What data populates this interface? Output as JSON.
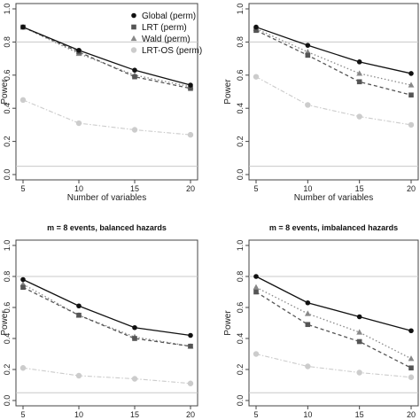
{
  "legend_entries": [
    {
      "label": "Global (perm)",
      "color": "#111111",
      "marker": "circle"
    },
    {
      "label": "LRT (perm)",
      "color": "#555555",
      "marker": "square"
    },
    {
      "label": "Wald (perm)",
      "color": "#888888",
      "marker": "triangle"
    },
    {
      "label": "LRT-OS (perm)",
      "color": "#cccccc",
      "marker": "diamond"
    }
  ],
  "chart_data": [
    {
      "type": "line",
      "title": "",
      "xlabel": "Number of variables",
      "ylabel": "Power",
      "x": [
        5,
        10,
        15,
        20
      ],
      "xlim": [
        5,
        20
      ],
      "ylim": [
        0,
        1
      ],
      "yticks": [
        "0.0",
        "0.2",
        "0.4",
        "0.6",
        "0.8",
        "1.0"
      ],
      "reference_lines": [
        0.05,
        0.8
      ],
      "legend": "top-right",
      "series": [
        {
          "name": "Global (perm)",
          "values": [
            0.89,
            0.75,
            0.63,
            0.54
          ]
        },
        {
          "name": "LRT (perm)",
          "values": [
            0.89,
            0.74,
            0.59,
            0.52
          ]
        },
        {
          "name": "Wald (perm)",
          "values": [
            0.89,
            0.73,
            0.6,
            0.53
          ]
        },
        {
          "name": "LRT-OS (perm)",
          "values": [
            0.45,
            0.31,
            0.27,
            0.24
          ]
        }
      ]
    },
    {
      "type": "line",
      "title": "",
      "xlabel": "Number of variables",
      "ylabel": "Power",
      "x": [
        5,
        10,
        15,
        20
      ],
      "xlim": [
        5,
        20
      ],
      "ylim": [
        0,
        1
      ],
      "yticks": [
        "0.0",
        "0.2",
        "0.4",
        "0.6",
        "0.8",
        "1.0"
      ],
      "reference_lines": [
        0.05,
        0.8
      ],
      "series": [
        {
          "name": "Global (perm)",
          "values": [
            0.89,
            0.78,
            0.68,
            0.61
          ]
        },
        {
          "name": "LRT (perm)",
          "values": [
            0.87,
            0.72,
            0.56,
            0.48
          ]
        },
        {
          "name": "Wald (perm)",
          "values": [
            0.88,
            0.74,
            0.61,
            0.54
          ]
        },
        {
          "name": "LRT-OS (perm)",
          "values": [
            0.59,
            0.42,
            0.35,
            0.3
          ]
        }
      ]
    },
    {
      "type": "line",
      "title": "m = 8 events, balanced hazards",
      "xlabel": "",
      "ylabel": "Power",
      "x": [
        5,
        10,
        15,
        20
      ],
      "xlim": [
        5,
        20
      ],
      "ylim": [
        0,
        1
      ],
      "yticks": [
        "0.0",
        "0.2",
        "0.4",
        "0.6",
        "0.8",
        "1.0"
      ],
      "reference_lines": [
        0.05,
        0.8
      ],
      "series": [
        {
          "name": "Global (perm)",
          "values": [
            0.78,
            0.61,
            0.47,
            0.42
          ]
        },
        {
          "name": "LRT (perm)",
          "values": [
            0.73,
            0.55,
            0.4,
            0.35
          ]
        },
        {
          "name": "Wald (perm)",
          "values": [
            0.75,
            0.55,
            0.41,
            0.35
          ]
        },
        {
          "name": "LRT-OS (perm)",
          "values": [
            0.21,
            0.16,
            0.14,
            0.11
          ]
        }
      ]
    },
    {
      "type": "line",
      "title": "m = 8 events, imbalanced hazards",
      "xlabel": "",
      "ylabel": "Power",
      "x": [
        5,
        10,
        15,
        20
      ],
      "xlim": [
        5,
        20
      ],
      "ylim": [
        0,
        1
      ],
      "yticks": [
        "0.0",
        "0.2",
        "0.4",
        "0.6",
        "0.8",
        "1.0"
      ],
      "reference_lines": [
        0.05,
        0.8
      ],
      "series": [
        {
          "name": "Global (perm)",
          "values": [
            0.8,
            0.63,
            0.54,
            0.45
          ]
        },
        {
          "name": "LRT (perm)",
          "values": [
            0.7,
            0.49,
            0.38,
            0.21
          ]
        },
        {
          "name": "Wald (perm)",
          "values": [
            0.73,
            0.56,
            0.44,
            0.27
          ]
        },
        {
          "name": "LRT-OS (perm)",
          "values": [
            0.3,
            0.22,
            0.18,
            0.15
          ]
        }
      ]
    }
  ]
}
